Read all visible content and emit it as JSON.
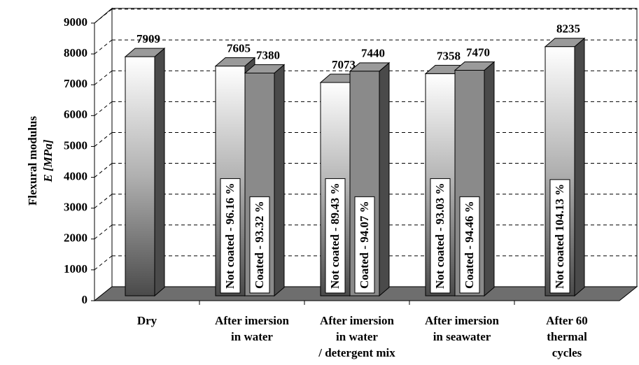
{
  "chart_data": {
    "type": "bar",
    "y_label": [
      "Flexural modulus",
      "E [MPa]"
    ],
    "categories": [
      [
        "Dry"
      ],
      [
        "After imersion",
        "in water"
      ],
      [
        "After imersion",
        "in water",
        "/ detergent mix"
      ],
      [
        "After imersion",
        "in seawater"
      ],
      [
        "After 60",
        "thermal",
        "cycles"
      ]
    ],
    "series": [
      {
        "color": "#8a8a8a",
        "values": [
          7909,
          7605,
          7073,
          7358,
          8235
        ],
        "annotations": [
          null,
          "Not coated - 96.16 %",
          "Not coated - 89.43 %",
          "Not coated - 93.03 %",
          "Not coated 104.13 %"
        ]
      },
      {
        "color": "#8a8a8a",
        "values": [
          null,
          7380,
          7440,
          7470,
          null
        ],
        "annotations": [
          null,
          "Coated - 93.32 %",
          "Coated -  94.07 %",
          "Coated -  94.46 %",
          null
        ]
      }
    ],
    "ylim": [
      0,
      9000
    ],
    "yticks": [
      0,
      1000,
      2000,
      3000,
      4000,
      5000,
      6000,
      7000,
      8000,
      9000
    ],
    "grid": true
  }
}
